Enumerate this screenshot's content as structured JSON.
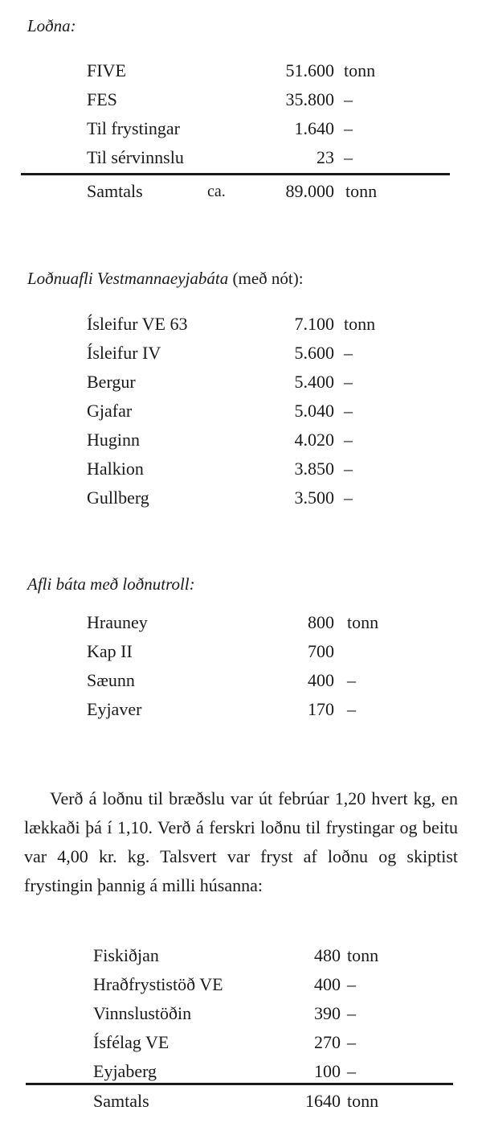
{
  "section1": {
    "heading": "Loðna:",
    "rows": [
      {
        "label": "FIVE",
        "value": "51.600",
        "unit": "tonn"
      },
      {
        "label": "FES",
        "value": "35.800",
        "unit": "–"
      },
      {
        "label": "Til frystingar",
        "value": "1.640",
        "unit": "–"
      },
      {
        "label": "Til sérvinnslu",
        "value": "23",
        "unit": "–"
      }
    ],
    "total": {
      "label": "Samtals",
      "prefix": "ca.",
      "value": "89.000",
      "unit": "tonn"
    }
  },
  "section2": {
    "heading": "Loðnuafli Vestmannaeyjabáta",
    "heading_suffix": "(með nót):",
    "rows": [
      {
        "label": "Ísleifur VE 63",
        "value": "7.100",
        "unit": "tonn"
      },
      {
        "label": "Ísleifur IV",
        "value": "5.600",
        "unit": "–"
      },
      {
        "label": "Bergur",
        "value": "5.400",
        "unit": "–"
      },
      {
        "label": "Gjafar",
        "value": "5.040",
        "unit": "–"
      },
      {
        "label": "Huginn",
        "value": "4.020",
        "unit": "–"
      },
      {
        "label": "Halkion",
        "value": "3.850",
        "unit": "–"
      },
      {
        "label": "Gullberg",
        "value": "3.500",
        "unit": "–"
      }
    ]
  },
  "section3": {
    "heading": "Afli báta með loðnutroll:",
    "rows": [
      {
        "label": "Hrauney",
        "value": "800",
        "unit": "tonn"
      },
      {
        "label": "Kap II",
        "value": "700",
        "unit": ""
      },
      {
        "label": "Sæunn",
        "value": "400",
        "unit": "–"
      },
      {
        "label": "Eyjaver",
        "value": "170",
        "unit": "–"
      }
    ]
  },
  "paragraph": "Verð á loðnu til bræðslu var út febrúar 1,20 hvert kg, en lækkaði þá í 1,10. Verð á ferskri loðnu til frystingar og beitu var 4,00 kr. kg. Talsvert var fryst af loðnu og skiptist frystingin þannig á milli húsanna:",
  "section4": {
    "rows": [
      {
        "label": "Fiskiðjan",
        "value": "480",
        "unit": "tonn"
      },
      {
        "label": "Hraðfrystistöð VE",
        "value": "400",
        "unit": "–"
      },
      {
        "label": "Vinnslustöðin",
        "value": "390",
        "unit": "–"
      },
      {
        "label": "Ísfélag VE",
        "value": "270",
        "unit": "–"
      },
      {
        "label": "Eyjaberg",
        "value": "100",
        "unit": "–"
      }
    ],
    "total": {
      "label": "Samtals",
      "value": "1640",
      "unit": "tonn"
    }
  }
}
